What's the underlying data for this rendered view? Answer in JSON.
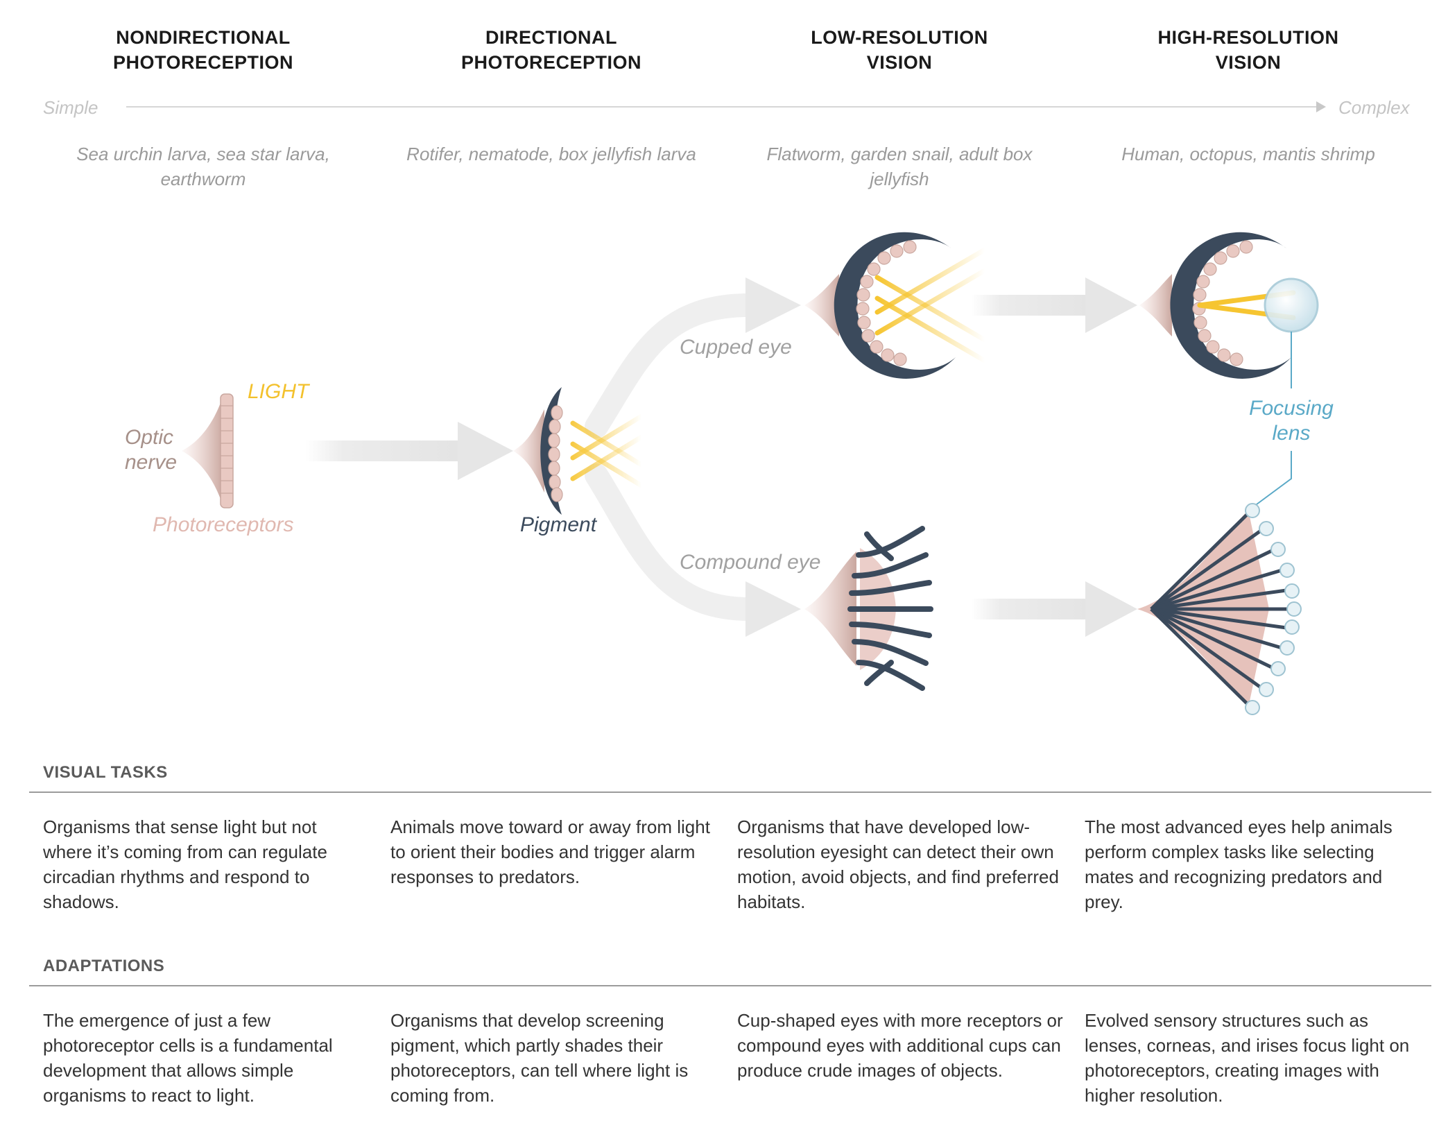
{
  "stages": [
    {
      "title_line1": "NONDIRECTIONAL",
      "title_line2": "PHOTORECEPTION",
      "examples": "Sea urchin larva, sea star larva, earthworm"
    },
    {
      "title_line1": "DIRECTIONAL",
      "title_line2": "PHOTORECEPTION",
      "examples": "Rotifer, nematode, box jellyfish larva"
    },
    {
      "title_line1": "LOW-RESOLUTION",
      "title_line2": "VISION",
      "examples": "Flatworm, garden snail, adult box jellyfish"
    },
    {
      "title_line1": "HIGH-RESOLUTION",
      "title_line2": "VISION",
      "examples": "Human, octopus, mantis shrimp"
    }
  ],
  "axis": {
    "left": "Simple",
    "right": "Complex"
  },
  "labels": {
    "light": "LIGHT",
    "optic_nerve_1": "Optic",
    "optic_nerve_2": "nerve",
    "photoreceptors": "Photoreceptors",
    "pigment": "Pigment",
    "cupped_eye": "Cupped eye",
    "compound_eye": "Compound eye",
    "focusing_lens_1": "Focusing",
    "focusing_lens_2": "lens"
  },
  "colors": {
    "light": "#f6c531",
    "pigment": "#3b4a5c",
    "receptor": "#e6c2bb",
    "lens": "#5aa9c7",
    "arrow": "#ececec"
  },
  "visual_tasks": {
    "heading": "VISUAL TASKS",
    "items": [
      "Organisms that sense light but not where it’s coming from can regulate circadian rhythms and respond to shadows.",
      "Animals move toward or away from light to orient their bodies and trigger alarm responses to predators.",
      "Organisms that have developed low-resolution eyesight can detect their own motion, avoid objects, and find preferred habitats.",
      "The most advanced eyes help animals perform complex tasks like selecting mates and recognizing predators and prey."
    ]
  },
  "adaptations": {
    "heading": "ADAPTATIONS",
    "items": [
      "The emergence of just a few photoreceptor cells is a fundamental development that allows simple organisms to react to light.",
      "Organisms that develop screening pigment, which partly shades their photoreceptors, can tell where light is coming from.",
      "Cup-shaped eyes with more receptors or compound eyes with additional cups can produce crude images of objects.",
      "Evolved sensory structures such as lenses, corneas, and irises focus light on photoreceptors, creating images with higher resolution."
    ]
  }
}
